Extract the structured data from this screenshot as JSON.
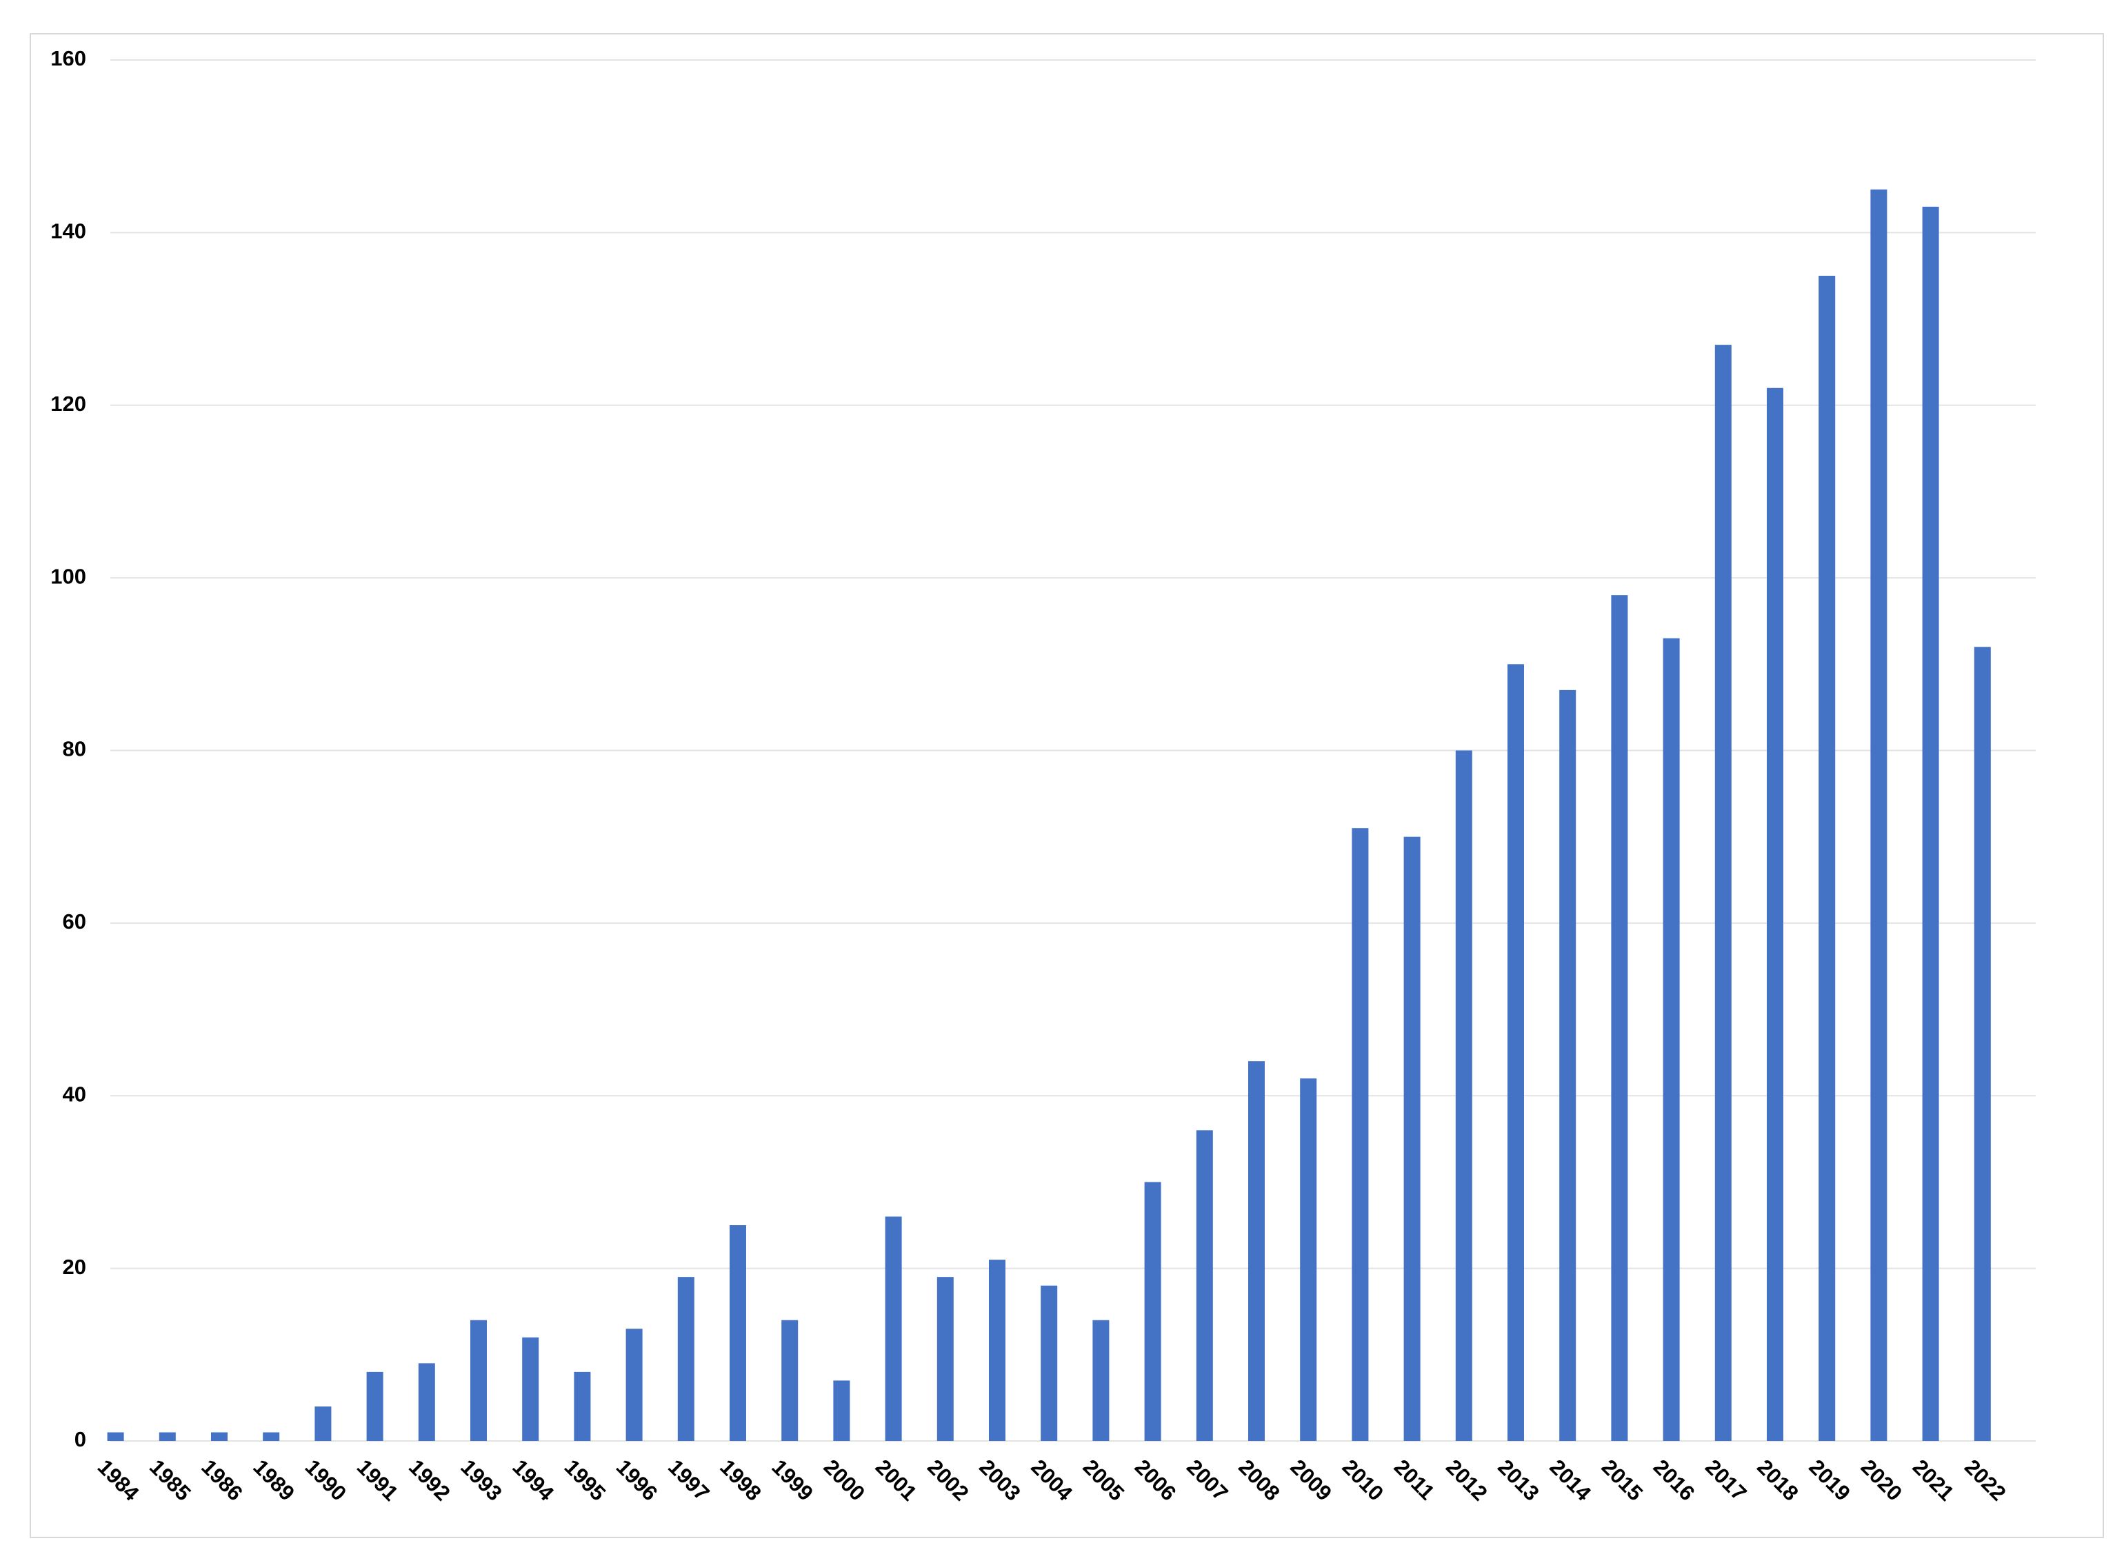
{
  "chart_data": {
    "type": "bar",
    "categories": [
      "1984",
      "1985",
      "1986",
      "1989",
      "1990",
      "1991",
      "1992",
      "1993",
      "1994",
      "1995",
      "1996",
      "1997",
      "1998",
      "1999",
      "2000",
      "2001",
      "2002",
      "2003",
      "2004",
      "2005",
      "2006",
      "2007",
      "2008",
      "2009",
      "2010",
      "2011",
      "2012",
      "2013",
      "2014",
      "2015",
      "2016",
      "2017",
      "2018",
      "2019",
      "2020",
      "2021",
      "2022"
    ],
    "values": [
      1,
      1,
      1,
      1,
      4,
      8,
      9,
      14,
      12,
      8,
      13,
      19,
      25,
      14,
      7,
      26,
      19,
      21,
      18,
      14,
      30,
      36,
      44,
      42,
      71,
      70,
      80,
      90,
      87,
      98,
      93,
      127,
      122,
      135,
      145,
      143,
      92
    ],
    "color": "#4472c4",
    "ylim": [
      0,
      160
    ],
    "yticks": [
      0,
      20,
      40,
      60,
      80,
      100,
      120,
      140,
      160
    ],
    "grid": true
  }
}
